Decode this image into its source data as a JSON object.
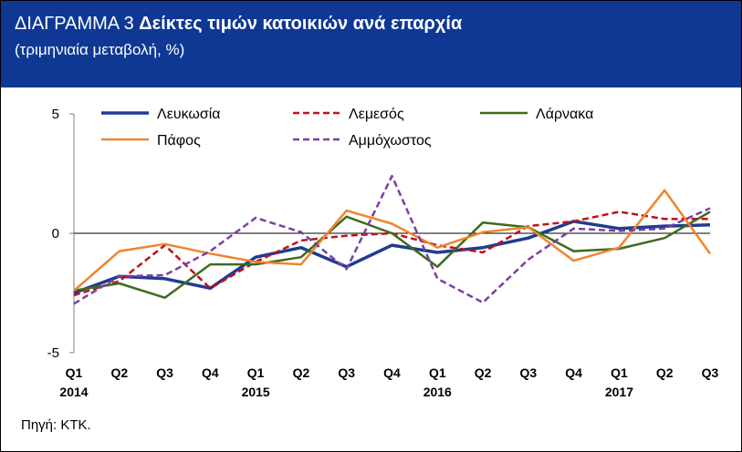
{
  "header": {
    "title_prefix": "ΔΙΑΓΡΑΜΜΑ 3 ",
    "title_main": "Δείκτες τιμών κατοικιών ανά επαρχία",
    "subtitle": "(τριμηνιαία μεταβολή, %)"
  },
  "source": "Πηγή: ΚΤΚ.",
  "colors": {
    "header_bg": "#0f3895",
    "Λευκωσία": "#1f3c8f",
    "Λεμεσός": "#c0121b",
    "Λάρνακα": "#3e6b1c",
    "Πάφος": "#f0842c",
    "Αμμόχωστος": "#7b3fa4"
  },
  "chart_data": {
    "type": "line",
    "ylim": [
      -5,
      5
    ],
    "y_ticks": [
      "5",
      "0",
      "-5"
    ],
    "grid": false,
    "legend_position": "top",
    "x": [
      "Q1",
      "Q2",
      "Q3",
      "Q4",
      "Q1",
      "Q2",
      "Q3",
      "Q4",
      "Q1",
      "Q2",
      "Q3",
      "Q4",
      "Q1",
      "Q2",
      "Q3"
    ],
    "years": [
      {
        "label": "2014",
        "index": 0
      },
      {
        "label": "2015",
        "index": 4
      },
      {
        "label": "2016",
        "index": 8
      },
      {
        "label": "2017",
        "index": 12
      }
    ],
    "series": [
      {
        "name": "Λευκωσία",
        "style": "solid-thick",
        "values": [
          -2.5,
          -1.8,
          -1.9,
          -2.3,
          -1.0,
          -0.6,
          -1.4,
          -0.5,
          -0.8,
          -0.6,
          -0.2,
          0.5,
          0.2,
          0.3,
          0.35
        ]
      },
      {
        "name": "Λεμεσός",
        "style": "dashed",
        "values": [
          -2.6,
          -2.0,
          -0.5,
          -2.3,
          -1.2,
          -0.3,
          -0.1,
          0.0,
          -0.5,
          -0.8,
          0.3,
          0.5,
          0.9,
          0.6,
          0.6
        ]
      },
      {
        "name": "Λάρνακα",
        "style": "solid",
        "values": [
          -2.4,
          -2.1,
          -2.7,
          -1.3,
          -1.3,
          -1.0,
          0.7,
          0.0,
          -1.4,
          0.45,
          0.25,
          -0.75,
          -0.65,
          -0.2,
          0.9
        ]
      },
      {
        "name": "Πάφος",
        "style": "solid",
        "values": [
          -2.4,
          -0.75,
          -0.45,
          -0.85,
          -1.2,
          -1.3,
          0.95,
          0.4,
          -0.6,
          0.05,
          0.25,
          -1.15,
          -0.6,
          1.8,
          -0.85
        ]
      },
      {
        "name": "Αμμόχωστος",
        "style": "dashed",
        "values": [
          -2.95,
          -1.8,
          -1.75,
          -0.75,
          0.65,
          0.05,
          -1.5,
          2.4,
          -1.9,
          -2.9,
          -1.1,
          0.2,
          0.1,
          0.2,
          1.05
        ]
      }
    ]
  }
}
